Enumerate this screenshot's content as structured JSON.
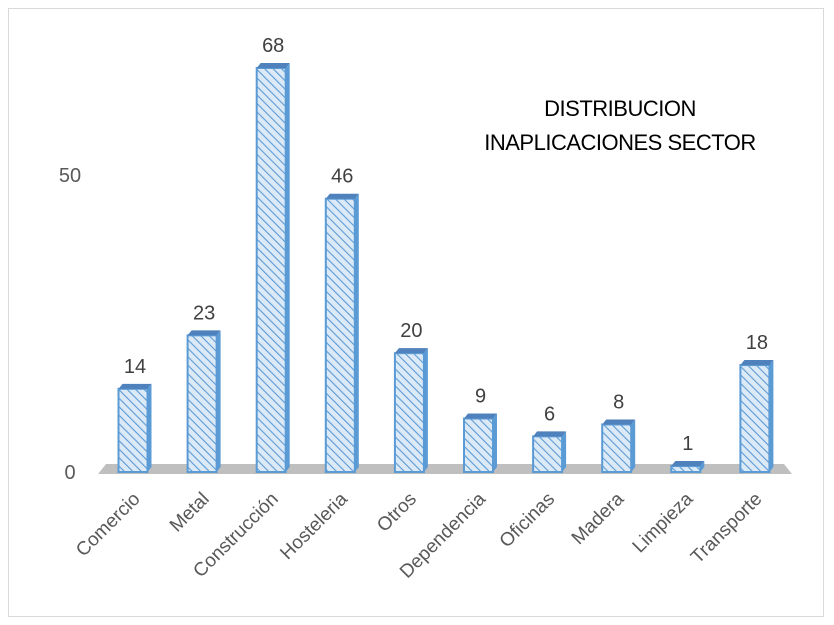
{
  "chart_data": {
    "type": "bar",
    "title_lines": [
      "DISTRIBUCION",
      "INAPLICACIONES SECTOR"
    ],
    "categories": [
      "Comercio",
      "Metal",
      "Construcción",
      "Hosteleria",
      "Otros",
      "Dependencia",
      "Oficinas",
      "Madera",
      "Limpieza",
      "Transporte"
    ],
    "values": [
      14,
      23,
      68,
      46,
      20,
      9,
      6,
      8,
      1,
      18
    ],
    "data_labels": [
      "14",
      "23",
      "68",
      "46",
      "20",
      "9",
      "6",
      "8",
      "1",
      "18"
    ],
    "y_ticks": [
      0,
      50
    ],
    "ylim": [
      0,
      68
    ],
    "grid": false,
    "legend": "none",
    "colors": {
      "bar_outline": "#5b9bd5",
      "bar_fill": "#dce9f6",
      "bar_hatch": "#5b9bd5",
      "bar_top": "#4f81bd",
      "floor": "#bfbfbf",
      "tick_text": "#595959"
    }
  }
}
